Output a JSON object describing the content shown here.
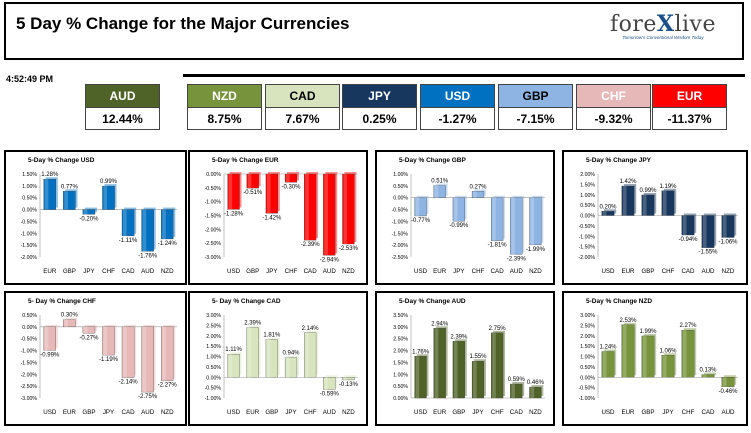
{
  "header": {
    "title": "5 Day % Change for the Major Currencies"
  },
  "logo": {
    "text_a": "fore",
    "text_x": "X",
    "text_b": "live",
    "tagline": "Tomorrow's Conventional Wisdom Today"
  },
  "time": "4:52:49 PM",
  "currencies": [
    {
      "name": "AUD",
      "value": "12.44%",
      "bg": "#4f6228",
      "fg": "#ffffff"
    },
    {
      "name": "NZD",
      "value": "8.75%",
      "bg": "#77933c",
      "fg": "#ffffff"
    },
    {
      "name": "CAD",
      "value": "7.67%",
      "bg": "#d7e4bd",
      "fg": "#000000"
    },
    {
      "name": "JPY",
      "value": "0.25%",
      "bg": "#17375e",
      "fg": "#ffffff"
    },
    {
      "name": "USD",
      "value": "-1.27%",
      "bg": "#0070c0",
      "fg": "#ffffff"
    },
    {
      "name": "GBP",
      "value": "-7.15%",
      "bg": "#8eb4e3",
      "fg": "#000000"
    },
    {
      "name": "CHF",
      "value": "-9.32%",
      "bg": "#e6b9b8",
      "fg": "#ffffff"
    },
    {
      "name": "EUR",
      "value": "-11.37%",
      "bg": "#ff0000",
      "fg": "#ffffff"
    }
  ],
  "chart_data": [
    {
      "type": "bar",
      "title": "5-Day % Change USD",
      "categories": [
        "EUR",
        "GBP",
        "JPY",
        "CHF",
        "CAD",
        "AUD",
        "NZD"
      ],
      "values": [
        1.28,
        0.77,
        -0.2,
        0.99,
        -1.11,
        -1.76,
        -1.24
      ],
      "labels": [
        "1.28%",
        "0.77%",
        "-0.20%",
        "0.99%",
        "-1.11%",
        "-1.76%",
        "-1.24%"
      ],
      "yticks": [
        "1.50%",
        "1.00%",
        "0.50%",
        "0.00%",
        "-0.50%",
        "-1.00%",
        "-1.50%",
        "-2.00%"
      ],
      "ylim": [
        -2.0,
        1.5
      ],
      "color": "#0070c0"
    },
    {
      "type": "bar",
      "title": "5-Day % Change EUR",
      "categories": [
        "USD",
        "GBP",
        "JPY",
        "CHF",
        "CAD",
        "AUD",
        "NZD"
      ],
      "values": [
        -1.28,
        -0.51,
        -1.42,
        -0.3,
        -2.39,
        -2.94,
        -2.53
      ],
      "labels": [
        "-1.28%",
        "-0.51%",
        "-1.42%",
        "-0.30%",
        "-2.39%",
        "-2.94%",
        "-2.53%"
      ],
      "yticks": [
        "0.00%",
        "-0.50%",
        "-1.00%",
        "-1.50%",
        "-2.00%",
        "-2.50%",
        "-3.00%"
      ],
      "ylim": [
        -3.0,
        0.0
      ],
      "color": "#ff0000"
    },
    {
      "type": "bar",
      "title": "5-Day % Change GBP",
      "categories": [
        "USD",
        "EUR",
        "JPY",
        "CHF",
        "CAD",
        "AUD",
        "NZD"
      ],
      "values": [
        -0.77,
        0.51,
        -0.99,
        0.27,
        -1.81,
        -2.39,
        -1.99
      ],
      "labels": [
        "-0.77%",
        "0.51%",
        "-0.99%",
        "0.27%",
        "-1.81%",
        "-2.39%",
        "-1.99%"
      ],
      "yticks": [
        "1.00%",
        "0.50%",
        "0.00%",
        "-0.50%",
        "-1.00%",
        "-1.50%",
        "-2.00%",
        "-2.50%"
      ],
      "ylim": [
        -2.5,
        1.0
      ],
      "color": "#8eb4e3"
    },
    {
      "type": "bar",
      "title": "5-Day % Change JPY",
      "categories": [
        "USD",
        "EUR",
        "GBP",
        "CHF",
        "CAD",
        "AUD",
        "NZD"
      ],
      "values": [
        0.2,
        1.42,
        0.99,
        1.19,
        -0.94,
        -1.55,
        -1.06
      ],
      "labels": [
        "0.20%",
        "1.42%",
        "0.99%",
        "1.19%",
        "-0.94%",
        "-1.55%",
        "-1.06%"
      ],
      "yticks": [
        "2.00%",
        "1.50%",
        "1.00%",
        "0.50%",
        "0.00%",
        "-0.50%",
        "-1.00%",
        "-1.50%",
        "-2.00%"
      ],
      "ylim": [
        -2.0,
        2.0
      ],
      "color": "#17375e"
    },
    {
      "type": "bar",
      "title": "5- Day % Change CHF",
      "categories": [
        "USD",
        "EUR",
        "GBP",
        "JPY",
        "CAD",
        "AUD",
        "NZD"
      ],
      "values": [
        -0.99,
        0.3,
        -0.27,
        -1.19,
        -2.14,
        -2.75,
        -2.27
      ],
      "labels": [
        "-0.99%",
        "0.30%",
        "-0.27%",
        "-1.19%",
        "-2.14%",
        "-2.75%",
        "-2.27%"
      ],
      "yticks": [
        "0.50%",
        "0.00%",
        "-0.50%",
        "-1.00%",
        "-1.50%",
        "-2.00%",
        "-2.50%",
        "-3.00%"
      ],
      "ylim": [
        -3.0,
        0.5
      ],
      "color": "#e6b9b8"
    },
    {
      "type": "bar",
      "title": "5- Day % Change CAD",
      "categories": [
        "USD",
        "EUR",
        "GBP",
        "JPY",
        "CHF",
        "AUD",
        "NZD"
      ],
      "values": [
        1.11,
        2.39,
        1.81,
        0.94,
        2.14,
        -0.59,
        -0.13
      ],
      "labels": [
        "1.11%",
        "2.39%",
        "1.81%",
        "0.94%",
        "2.14%",
        "-0.59%",
        "-0.13%"
      ],
      "yticks": [
        "3.00%",
        "2.50%",
        "2.00%",
        "1.50%",
        "1.00%",
        "0.50%",
        "0.00%",
        "-0.50%",
        "-1.00%"
      ],
      "ylim": [
        -1.0,
        3.0
      ],
      "color": "#d7e4bd"
    },
    {
      "type": "bar",
      "title": "5-Day % Change AUD",
      "categories": [
        "USD",
        "EUR",
        "GBP",
        "JPY",
        "CHF",
        "CAD",
        "NZD"
      ],
      "values": [
        1.76,
        2.94,
        2.39,
        1.55,
        2.75,
        0.59,
        0.46
      ],
      "labels": [
        "1.76%",
        "2.94%",
        "2.39%",
        "1.55%",
        "2.75%",
        "0.59%",
        "0.46%"
      ],
      "yticks": [
        "3.50%",
        "3.00%",
        "2.50%",
        "2.00%",
        "1.50%",
        "1.00%",
        "0.50%",
        "0.00%"
      ],
      "ylim": [
        0.0,
        3.5
      ],
      "color": "#4f6228"
    },
    {
      "type": "bar",
      "title": "5-Day % Change NZD",
      "categories": [
        "USD",
        "EUR",
        "GBP",
        "JPY",
        "CHF",
        "CAD",
        "AUD"
      ],
      "values": [
        1.24,
        2.53,
        1.99,
        1.06,
        2.27,
        0.13,
        -0.46
      ],
      "labels": [
        "1.24%",
        "2.53%",
        "1.99%",
        "1.06%",
        "2.27%",
        "0.13%",
        "-0.46%"
      ],
      "yticks": [
        "3.00%",
        "2.50%",
        "2.00%",
        "1.50%",
        "1.00%",
        "0.50%",
        "0.00%",
        "-0.50%",
        "-1.00%"
      ],
      "ylim": [
        -1.0,
        3.0
      ],
      "color": "#77933c"
    }
  ]
}
